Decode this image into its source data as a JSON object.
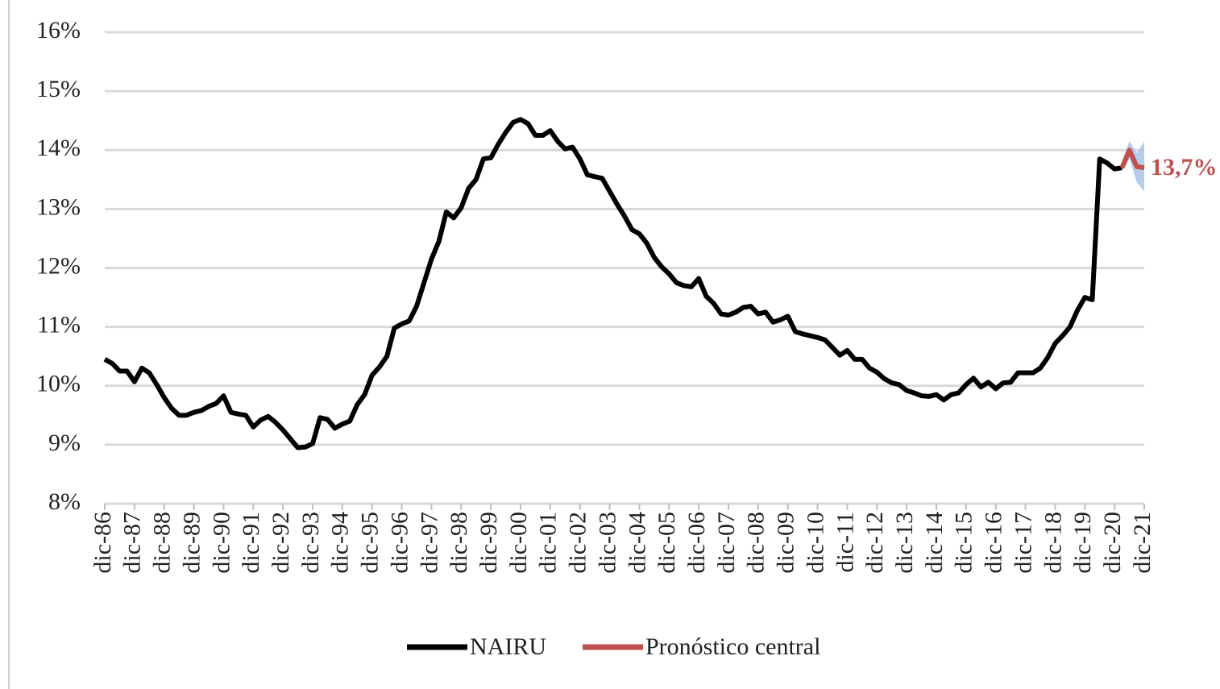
{
  "chart_data": {
    "type": "line",
    "categories": [
      "dic-86",
      null,
      null,
      null,
      "dic-87",
      null,
      null,
      null,
      "dic-88",
      null,
      null,
      null,
      "dic-89",
      null,
      null,
      null,
      "dic-90",
      null,
      null,
      null,
      "dic-91",
      null,
      null,
      null,
      "dic-92",
      null,
      null,
      null,
      "dic-93",
      null,
      null,
      null,
      "dic-94",
      null,
      null,
      null,
      "dic-95",
      null,
      null,
      null,
      "dic-96",
      null,
      null,
      null,
      "dic-97",
      null,
      null,
      null,
      "dic-98",
      null,
      null,
      null,
      "dic-99",
      null,
      null,
      null,
      "dic-00",
      null,
      null,
      null,
      "dic-01",
      null,
      null,
      null,
      "dic-02",
      null,
      null,
      null,
      "dic-03",
      null,
      null,
      null,
      "dic-04",
      null,
      null,
      null,
      "dic-05",
      null,
      null,
      null,
      "dic-06",
      null,
      null,
      null,
      "dic-07",
      null,
      null,
      null,
      "dic-08",
      null,
      null,
      null,
      "dic-09",
      null,
      null,
      null,
      "dic-10",
      null,
      null,
      null,
      "dic-11",
      null,
      null,
      null,
      "dic-12",
      null,
      null,
      null,
      "dic-13",
      null,
      null,
      null,
      "dic-14",
      null,
      null,
      null,
      "dic-15",
      null,
      null,
      null,
      "dic-16",
      null,
      null,
      null,
      "dic-17",
      null,
      null,
      null,
      "dic-18",
      null,
      null,
      null,
      "dic-19",
      null,
      null,
      null,
      "dic-20",
      null,
      null,
      null,
      "dic-21"
    ],
    "series": [
      {
        "name": "NAIRU",
        "color": "#000000",
        "values": [
          10.45,
          10.38,
          10.25,
          10.25,
          10.07,
          10.3,
          10.22,
          10.02,
          9.8,
          9.62,
          9.5,
          9.5,
          9.55,
          9.58,
          9.65,
          9.7,
          9.83,
          9.55,
          9.52,
          9.5,
          9.3,
          9.42,
          9.48,
          9.38,
          9.25,
          9.1,
          8.95,
          8.96,
          9.02,
          9.46,
          9.43,
          9.28,
          9.35,
          9.4,
          9.68,
          9.85,
          10.18,
          10.32,
          10.5,
          10.98,
          11.05,
          11.1,
          11.35,
          11.75,
          12.15,
          12.45,
          12.95,
          12.85,
          13.02,
          13.35,
          13.5,
          13.85,
          13.87,
          14.1,
          14.3,
          14.47,
          14.52,
          14.45,
          14.25,
          14.25,
          14.33,
          14.15,
          14.02,
          14.05,
          13.85,
          13.58,
          13.55,
          13.52,
          13.3,
          13.08,
          12.88,
          12.65,
          12.58,
          12.42,
          12.18,
          12.02,
          11.9,
          11.75,
          11.7,
          11.68,
          11.82,
          11.52,
          11.4,
          11.22,
          11.2,
          11.25,
          11.33,
          11.35,
          11.22,
          11.25,
          11.08,
          11.12,
          11.18,
          10.92,
          10.88,
          10.85,
          10.82,
          10.78,
          10.65,
          10.52,
          10.6,
          10.45,
          10.45,
          10.3,
          10.23,
          10.12,
          10.05,
          10.02,
          9.92,
          9.88,
          9.83,
          9.82,
          9.85,
          9.76,
          9.85,
          9.88,
          10.02,
          10.13,
          9.98,
          10.06,
          9.95,
          10.05,
          10.06,
          10.22,
          10.22,
          10.22,
          10.3,
          10.48,
          10.72,
          10.85,
          11.0,
          11.28,
          11.5,
          11.46,
          13.85,
          13.78,
          13.68,
          13.7,
          null,
          null,
          null
        ]
      },
      {
        "name": "Pronóstico central",
        "color": "#c0504d",
        "band_color": "#a9c6e8",
        "values": [
          null,
          null,
          null,
          null,
          null,
          null,
          null,
          null,
          null,
          null,
          null,
          null,
          null,
          null,
          null,
          null,
          null,
          null,
          null,
          null,
          null,
          null,
          null,
          null,
          null,
          null,
          null,
          null,
          null,
          null,
          null,
          null,
          null,
          null,
          null,
          null,
          null,
          null,
          null,
          null,
          null,
          null,
          null,
          null,
          null,
          null,
          null,
          null,
          null,
          null,
          null,
          null,
          null,
          null,
          null,
          null,
          null,
          null,
          null,
          null,
          null,
          null,
          null,
          null,
          null,
          null,
          null,
          null,
          null,
          null,
          null,
          null,
          null,
          null,
          null,
          null,
          null,
          null,
          null,
          null,
          null,
          null,
          null,
          null,
          null,
          null,
          null,
          null,
          null,
          null,
          null,
          null,
          null,
          null,
          null,
          null,
          null,
          null,
          null,
          null,
          null,
          null,
          null,
          null,
          null,
          null,
          null,
          null,
          null,
          null,
          null,
          null,
          null,
          null,
          null,
          null,
          null,
          null,
          null,
          null,
          null,
          null,
          null,
          null,
          null,
          null,
          null,
          null,
          null,
          null,
          null,
          null,
          null,
          null,
          null,
          null,
          null,
          13.7,
          14.0,
          13.72,
          13.7
        ],
        "value_labels": [
          null,
          null,
          null,
          null,
          null,
          null,
          null,
          null,
          null,
          null,
          null,
          null,
          null,
          null,
          null,
          null,
          null,
          null,
          null,
          null,
          null,
          null,
          null,
          null,
          null,
          null,
          null,
          null,
          null,
          null,
          null,
          null,
          null,
          null,
          null,
          null,
          null,
          null,
          null,
          null,
          null,
          null,
          null,
          null,
          null,
          null,
          null,
          null,
          null,
          null,
          null,
          null,
          null,
          null,
          null,
          null,
          null,
          null,
          null,
          null,
          null,
          null,
          null,
          null,
          null,
          null,
          null,
          null,
          null,
          null,
          null,
          null,
          null,
          null,
          null,
          null,
          null,
          null,
          null,
          null,
          null,
          null,
          null,
          null,
          null,
          null,
          null,
          null,
          null,
          null,
          null,
          null,
          null,
          null,
          null,
          null,
          null,
          null,
          null,
          null,
          null,
          null,
          null,
          null,
          null,
          null,
          null,
          null,
          null,
          null,
          null,
          null,
          null,
          null,
          null,
          null,
          null,
          null,
          null,
          null,
          null,
          null,
          null,
          null,
          null,
          null,
          null,
          null,
          null,
          null,
          null,
          null,
          null,
          null,
          null,
          null,
          null,
          null,
          null,
          null,
          "13,7%"
        ],
        "lower": [
          null,
          null,
          null,
          null,
          null,
          null,
          null,
          null,
          null,
          null,
          null,
          null,
          null,
          null,
          null,
          null,
          null,
          null,
          null,
          null,
          null,
          null,
          null,
          null,
          null,
          null,
          null,
          null,
          null,
          null,
          null,
          null,
          null,
          null,
          null,
          null,
          null,
          null,
          null,
          null,
          null,
          null,
          null,
          null,
          null,
          null,
          null,
          null,
          null,
          null,
          null,
          null,
          null,
          null,
          null,
          null,
          null,
          null,
          null,
          null,
          null,
          null,
          null,
          null,
          null,
          null,
          null,
          null,
          null,
          null,
          null,
          null,
          null,
          null,
          null,
          null,
          null,
          null,
          null,
          null,
          null,
          null,
          null,
          null,
          null,
          null,
          null,
          null,
          null,
          null,
          null,
          null,
          null,
          null,
          null,
          null,
          null,
          null,
          null,
          null,
          null,
          null,
          null,
          null,
          null,
          null,
          null,
          null,
          null,
          null,
          null,
          null,
          null,
          null,
          null,
          null,
          null,
          null,
          null,
          null,
          null,
          null,
          null,
          null,
          null,
          null,
          null,
          null,
          null,
          null,
          null,
          null,
          null,
          null,
          null,
          null,
          null,
          13.65,
          13.85,
          13.45,
          13.3
        ],
        "upper": [
          null,
          null,
          null,
          null,
          null,
          null,
          null,
          null,
          null,
          null,
          null,
          null,
          null,
          null,
          null,
          null,
          null,
          null,
          null,
          null,
          null,
          null,
          null,
          null,
          null,
          null,
          null,
          null,
          null,
          null,
          null,
          null,
          null,
          null,
          null,
          null,
          null,
          null,
          null,
          null,
          null,
          null,
          null,
          null,
          null,
          null,
          null,
          null,
          null,
          null,
          null,
          null,
          null,
          null,
          null,
          null,
          null,
          null,
          null,
          null,
          null,
          null,
          null,
          null,
          null,
          null,
          null,
          null,
          null,
          null,
          null,
          null,
          null,
          null,
          null,
          null,
          null,
          null,
          null,
          null,
          null,
          null,
          null,
          null,
          null,
          null,
          null,
          null,
          null,
          null,
          null,
          null,
          null,
          null,
          null,
          null,
          null,
          null,
          null,
          null,
          null,
          null,
          null,
          null,
          null,
          null,
          null,
          null,
          null,
          null,
          null,
          null,
          null,
          null,
          null,
          null,
          null,
          null,
          null,
          null,
          null,
          null,
          null,
          null,
          null,
          null,
          null,
          null,
          null,
          null,
          null,
          null,
          null,
          null,
          null,
          null,
          null,
          13.8,
          14.15,
          13.95,
          14.15
        ]
      }
    ],
    "ylim": [
      8,
      16
    ],
    "yticks": [
      {
        "value": 8,
        "label": "8%"
      },
      {
        "value": 9,
        "label": "9%"
      },
      {
        "value": 10,
        "label": "10%"
      },
      {
        "value": 11,
        "label": "11%"
      },
      {
        "value": 12,
        "label": "12%"
      },
      {
        "value": 13,
        "label": "13%"
      },
      {
        "value": 14,
        "label": "14%"
      },
      {
        "value": 15,
        "label": "15%"
      },
      {
        "value": 16,
        "label": "16%"
      }
    ],
    "grid": true
  }
}
